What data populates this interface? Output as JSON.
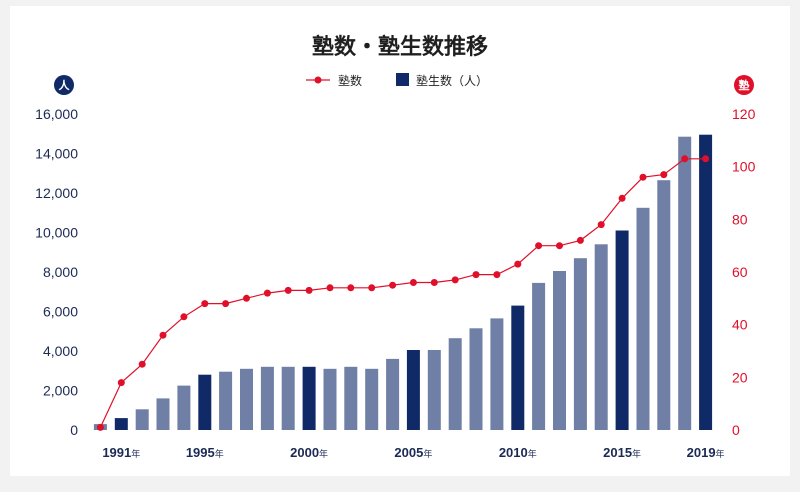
{
  "chart_data": {
    "type": "bar",
    "title": "塾数・塾生数推移",
    "left_axis_badge": "人",
    "right_axis_badge": "塾",
    "left_ticks": [
      "0",
      "2,000",
      "4,000",
      "6,000",
      "8,000",
      "10,000",
      "12,000",
      "14,000",
      "16,000"
    ],
    "right_ticks": [
      "0",
      "20",
      "40",
      "60",
      "80",
      "100",
      "120"
    ],
    "ylim_left": [
      0,
      16000
    ],
    "ylim_right": [
      0,
      120
    ],
    "legend": [
      {
        "name": "塾数",
        "kind": "line"
      },
      {
        "name": "塾生数（人）",
        "kind": "bar"
      }
    ],
    "x": [
      1990,
      1991,
      1992,
      1993,
      1994,
      1995,
      1996,
      1997,
      1998,
      1999,
      2000,
      2001,
      2002,
      2003,
      2004,
      2005,
      2006,
      2007,
      2008,
      2009,
      2010,
      2011,
      2012,
      2013,
      2014,
      2015,
      2016,
      2017,
      2018,
      2019
    ],
    "x_labels": [
      {
        "year": "1991",
        "unit": "年",
        "index": 1
      },
      {
        "year": "1995",
        "unit": "年",
        "index": 5
      },
      {
        "year": "2000",
        "unit": "年",
        "index": 10
      },
      {
        "year": "2005",
        "unit": "年",
        "index": 15
      },
      {
        "year": "2010",
        "unit": "年",
        "index": 20
      },
      {
        "year": "2015",
        "unit": "年",
        "index": 25
      },
      {
        "year": "2019",
        "unit": "年",
        "index": 29
      }
    ],
    "highlight_indices": [
      1,
      5,
      10,
      15,
      20,
      25,
      29
    ],
    "series": [
      {
        "name": "塾生数（人）",
        "axis": "left",
        "type": "bar",
        "values": [
          300,
          600,
          1050,
          1600,
          2250,
          2800,
          2950,
          3100,
          3200,
          3200,
          3200,
          3100,
          3200,
          3100,
          3600,
          4050,
          4050,
          4650,
          5150,
          5650,
          6300,
          7450,
          8050,
          8700,
          9400,
          10100,
          11250,
          12650,
          14850,
          14950
        ]
      },
      {
        "name": "塾数",
        "axis": "right",
        "type": "line",
        "values": [
          1,
          18,
          25,
          36,
          43,
          48,
          48,
          50,
          52,
          53,
          53,
          54,
          54,
          54,
          55,
          56,
          56,
          57,
          59,
          59,
          63,
          70,
          70,
          72,
          78,
          88,
          96,
          97,
          103,
          103
        ]
      }
    ],
    "colors": {
      "bar": "#6f7fa5",
      "bar_highlight": "#0f2a66",
      "line": "#e0102a",
      "left_axis": "#1b2a55",
      "right_axis": "#e0102a"
    }
  }
}
